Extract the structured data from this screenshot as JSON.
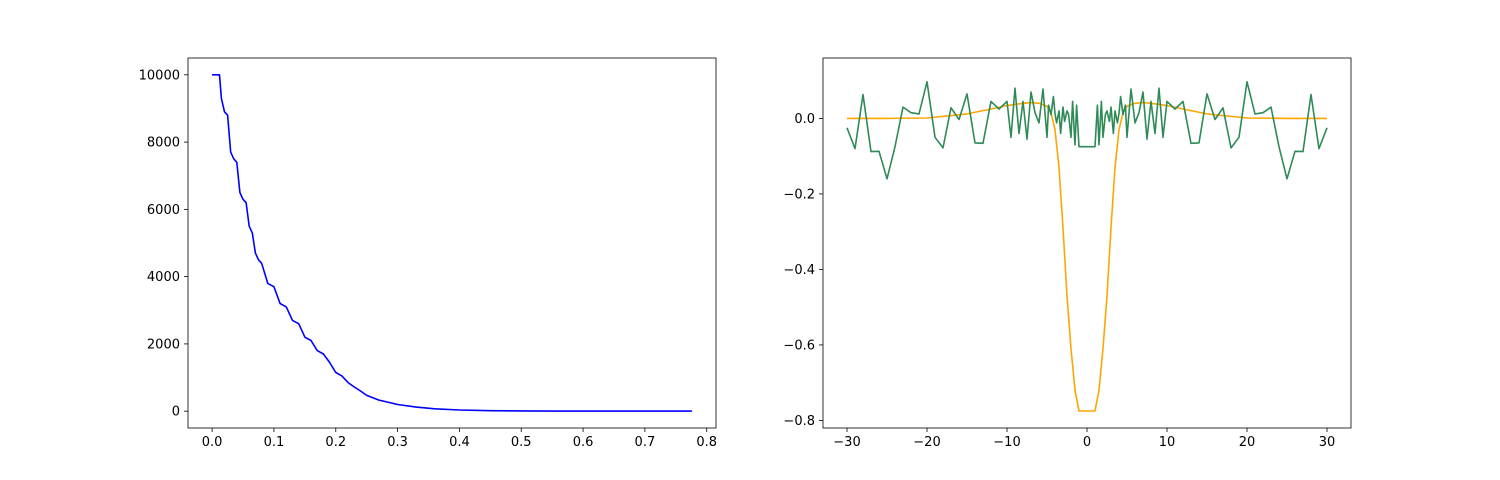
{
  "chart_data": [
    {
      "type": "line",
      "title": "",
      "xlabel": "",
      "ylabel": "",
      "xlim": [
        -0.039,
        0.815
      ],
      "ylim": [
        -500,
        10500
      ],
      "xticks": [
        0.0,
        0.1,
        0.2,
        0.3,
        0.4,
        0.5,
        0.6,
        0.7,
        0.8
      ],
      "xtick_labels": [
        "0.0",
        "0.1",
        "0.2",
        "0.3",
        "0.4",
        "0.5",
        "0.6",
        "0.7",
        "0.8"
      ],
      "yticks": [
        0,
        2000,
        4000,
        6000,
        8000,
        10000
      ],
      "ytick_labels": [
        "0",
        "2000",
        "4000",
        "6000",
        "8000",
        "10000"
      ],
      "grid": false,
      "series": [
        {
          "color": "#0000ff",
          "x": [
            0.0,
            0.012,
            0.015,
            0.02,
            0.025,
            0.03,
            0.035,
            0.04,
            0.045,
            0.05,
            0.055,
            0.06,
            0.065,
            0.07,
            0.075,
            0.08,
            0.09,
            0.1,
            0.11,
            0.12,
            0.13,
            0.14,
            0.15,
            0.16,
            0.17,
            0.18,
            0.19,
            0.2,
            0.21,
            0.22,
            0.23,
            0.24,
            0.25,
            0.27,
            0.3,
            0.33,
            0.36,
            0.4,
            0.45,
            0.5,
            0.55,
            0.6,
            0.7,
            0.776
          ],
          "y": [
            10000,
            10000,
            9300,
            8900,
            8800,
            7700,
            7500,
            7400,
            6500,
            6300,
            6200,
            5500,
            5300,
            4700,
            4500,
            4400,
            3800,
            3700,
            3200,
            3100,
            2700,
            2600,
            2200,
            2100,
            1800,
            1700,
            1450,
            1150,
            1050,
            850,
            720,
            600,
            470,
            330,
            200,
            120,
            70,
            35,
            15,
            7,
            3,
            2,
            1,
            1
          ]
        }
      ]
    },
    {
      "type": "line",
      "title": "",
      "xlabel": "",
      "ylabel": "",
      "xlim": [
        -33,
        33
      ],
      "ylim": [
        -0.82,
        0.16
      ],
      "xticks": [
        -30,
        -20,
        -10,
        0,
        10,
        20,
        30
      ],
      "xtick_labels": [
        "−30",
        "−20",
        "−10",
        "0",
        "10",
        "20",
        "30"
      ],
      "yticks": [
        -0.8,
        -0.6,
        -0.4,
        -0.2,
        0.0
      ],
      "ytick_labels": [
        "−0.8",
        "−0.6",
        "−0.4",
        "−0.2",
        "0.0"
      ],
      "grid": false,
      "series": [
        {
          "color": "#ffa500",
          "x": [
            -30,
            -25,
            -20,
            -15,
            -12,
            -10,
            -8,
            -7,
            -6,
            -5,
            -4.5,
            -4,
            -3.5,
            -3,
            -2.5,
            -2,
            -1.5,
            -1,
            1,
            1.5,
            2,
            2.5,
            3,
            3.5,
            4,
            4.5,
            5,
            6,
            7,
            8,
            10,
            12,
            15,
            20,
            25,
            30
          ],
          "y": [
            0.0,
            0.0,
            0.001,
            0.012,
            0.025,
            0.034,
            0.04,
            0.042,
            0.04,
            0.032,
            0.015,
            -0.03,
            -0.13,
            -0.29,
            -0.47,
            -0.61,
            -0.72,
            -0.775,
            -0.775,
            -0.72,
            -0.61,
            -0.47,
            -0.29,
            -0.13,
            -0.03,
            0.015,
            0.032,
            0.04,
            0.042,
            0.04,
            0.034,
            0.025,
            0.012,
            0.001,
            0.0,
            0.0
          ]
        },
        {
          "color": "#2e8b57",
          "x": [
            -30,
            -29,
            -28,
            -27,
            -26,
            -25,
            -24,
            -23,
            -22,
            -21,
            -20,
            -19,
            -18,
            -17,
            -16,
            -15,
            -14,
            -13,
            -12,
            -11,
            -10,
            -9.5,
            -9,
            -8.5,
            -8,
            -7.5,
            -7,
            -6.5,
            -6,
            -5.5,
            -5,
            -4.8,
            -4.5,
            -4.2,
            -4,
            -3.8,
            -3.5,
            -3.3,
            -3,
            -2.8,
            -2.5,
            -2.3,
            -2,
            -1.8,
            -1.5,
            -1.3,
            -1,
            1,
            1.3,
            1.5,
            1.8,
            2,
            2.3,
            2.5,
            2.8,
            3,
            3.3,
            3.5,
            3.8,
            4,
            4.2,
            4.5,
            4.8,
            5,
            5.5,
            6,
            6.5,
            7,
            7.5,
            8,
            8.5,
            9,
            9.5,
            10,
            11,
            12,
            13,
            14,
            15,
            16,
            17,
            18,
            19,
            20,
            21,
            22,
            23,
            24,
            25,
            26,
            27,
            28,
            29,
            30
          ],
          "y": [
            -0.025,
            -0.08,
            0.063,
            -0.088,
            -0.087,
            -0.16,
            -0.075,
            0.03,
            0.015,
            0.012,
            0.097,
            -0.05,
            -0.078,
            0.028,
            -0.003,
            0.065,
            -0.065,
            -0.066,
            0.045,
            0.025,
            0.045,
            -0.05,
            0.08,
            -0.04,
            0.045,
            -0.055,
            0.07,
            0.015,
            -0.012,
            0.078,
            -0.05,
            0.035,
            0.01,
            0.058,
            0.013,
            -0.012,
            0.02,
            -0.04,
            0.03,
            -0.008,
            0.02,
            0.01,
            -0.05,
            0.045,
            -0.07,
            0.035,
            -0.075,
            -0.075,
            0.035,
            -0.07,
            0.045,
            -0.05,
            0.01,
            0.02,
            -0.008,
            0.03,
            -0.04,
            0.02,
            -0.012,
            0.013,
            0.058,
            0.01,
            0.035,
            -0.05,
            0.078,
            -0.012,
            0.015,
            0.07,
            -0.055,
            0.045,
            -0.04,
            0.08,
            -0.05,
            0.045,
            0.025,
            0.045,
            -0.066,
            -0.065,
            0.065,
            -0.003,
            0.028,
            -0.078,
            -0.05,
            0.097,
            0.012,
            0.015,
            0.03,
            -0.075,
            -0.16,
            -0.087,
            -0.088,
            0.063,
            -0.08,
            -0.025
          ]
        }
      ]
    }
  ]
}
